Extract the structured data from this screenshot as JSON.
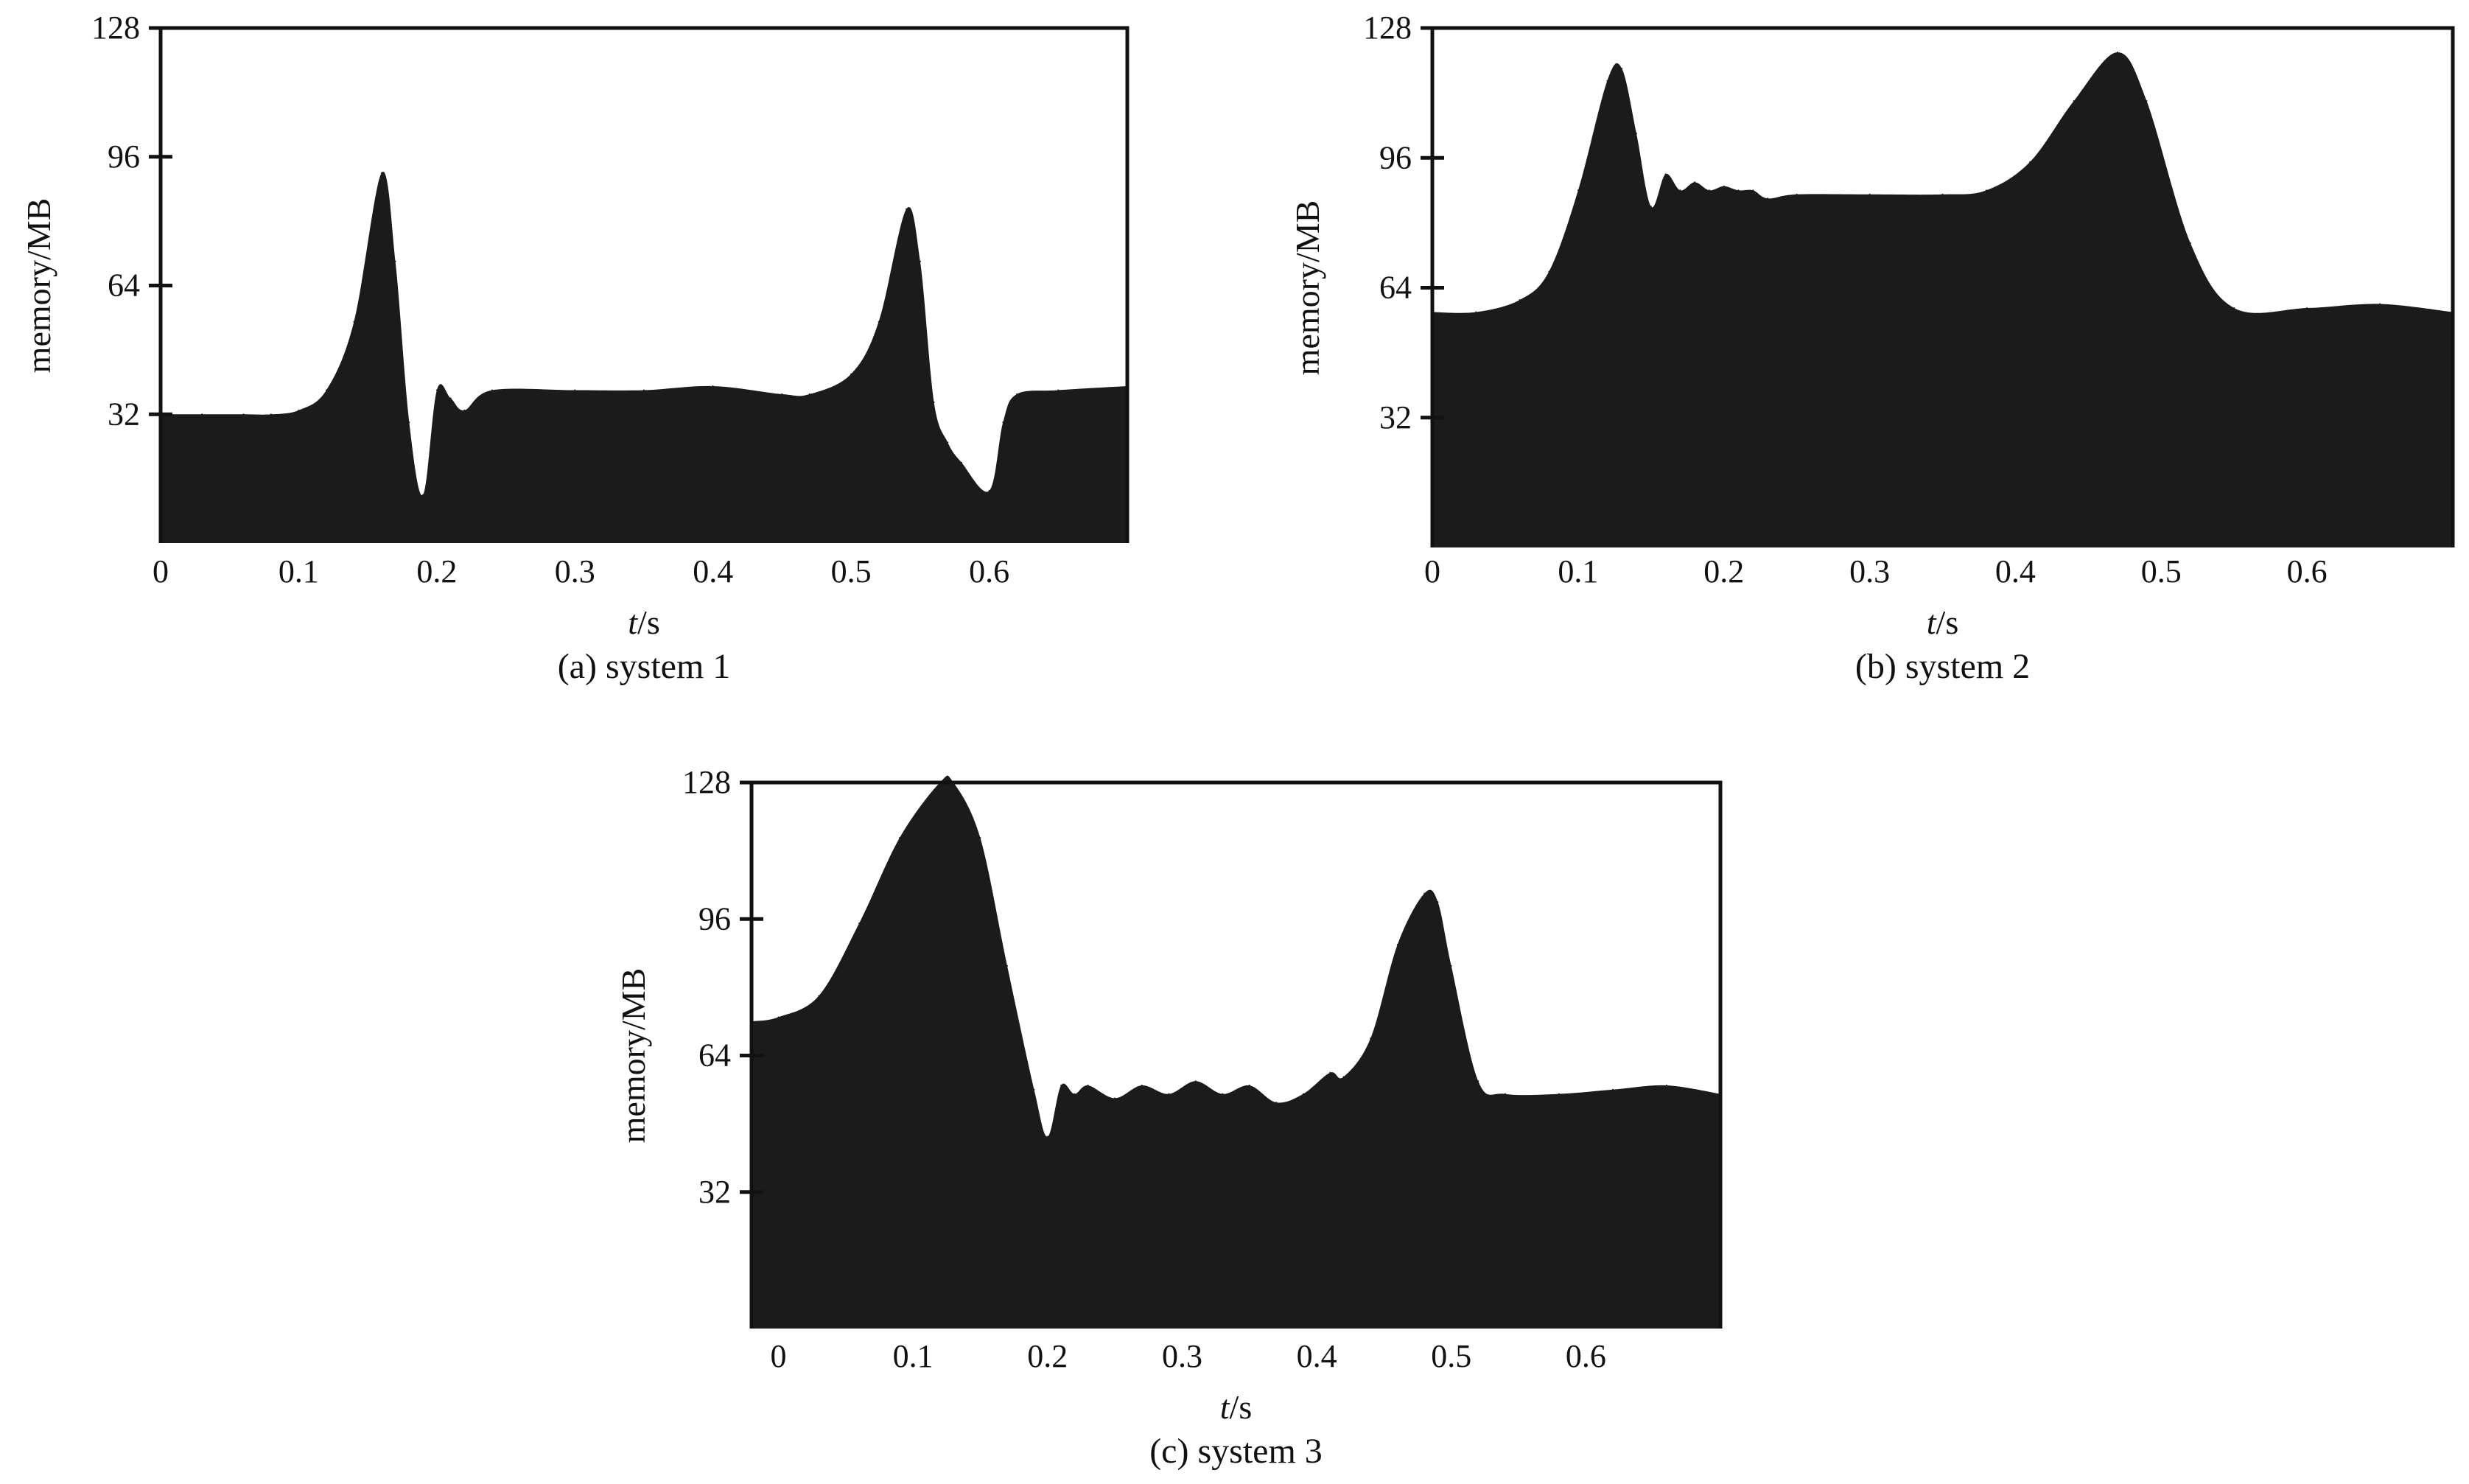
{
  "figure": {
    "fill_color": "#1b1b1b",
    "frame_color": "#111111",
    "background": "#ffffff"
  },
  "chart_data": [
    {
      "type": "area",
      "caption": "(a) system 1",
      "xlabel_var": "t",
      "xlabel_unit": "/s",
      "ylabel": "memory/MB",
      "xlim": [
        0,
        0.7
      ],
      "ylim": [
        0,
        128
      ],
      "xticks": [
        0,
        0.1,
        0.2,
        0.3,
        0.4,
        0.5,
        0.6
      ],
      "xtick_labels": [
        "0",
        "0.1",
        "0.2",
        "0.3",
        "0.4",
        "0.5",
        "0.6"
      ],
      "yticks": [
        32,
        64,
        96,
        128
      ],
      "ytick_labels": [
        "32",
        "64",
        "96",
        "128"
      ],
      "series": [
        {
          "x": [
            0,
            0.03,
            0.06,
            0.08,
            0.1,
            0.12,
            0.14,
            0.16,
            0.17,
            0.18,
            0.19,
            0.2,
            0.21,
            0.22,
            0.24,
            0.3,
            0.35,
            0.4,
            0.45,
            0.47,
            0.5,
            0.52,
            0.54,
            0.55,
            0.56,
            0.57,
            0.58,
            0.6,
            0.61,
            0.62,
            0.65,
            0.7
          ],
          "y": [
            32,
            32,
            32,
            32,
            33,
            38,
            55,
            92,
            70,
            30,
            12,
            38,
            36,
            33,
            38,
            38,
            38,
            39,
            37,
            37,
            42,
            55,
            83,
            70,
            35,
            25,
            20,
            13,
            30,
            37,
            38,
            39
          ]
        }
      ]
    },
    {
      "type": "area",
      "caption": "(b) system 2",
      "xlabel_var": "t",
      "xlabel_unit": "/s",
      "ylabel": "memory/MB",
      "xlim": [
        0,
        0.7
      ],
      "ylim": [
        0,
        128
      ],
      "xticks": [
        0,
        0.1,
        0.2,
        0.3,
        0.4,
        0.5,
        0.6
      ],
      "xtick_labels": [
        "0",
        "0.1",
        "0.2",
        "0.3",
        "0.4",
        "0.5",
        "0.6"
      ],
      "yticks": [
        32,
        64,
        96,
        128
      ],
      "ytick_labels": [
        "32",
        "64",
        "96",
        "128"
      ],
      "series": [
        {
          "x": [
            0,
            0.03,
            0.06,
            0.08,
            0.1,
            0.12,
            0.13,
            0.14,
            0.15,
            0.16,
            0.17,
            0.18,
            0.19,
            0.2,
            0.21,
            0.22,
            0.23,
            0.25,
            0.3,
            0.35,
            0.38,
            0.41,
            0.44,
            0.47,
            0.49,
            0.52,
            0.55,
            0.6,
            0.65,
            0.7
          ],
          "y": [
            58,
            58,
            61,
            68,
            88,
            115,
            118,
            102,
            84,
            92,
            88,
            90,
            88,
            89,
            88,
            88,
            86,
            87,
            87,
            87,
            88,
            95,
            110,
            122,
            110,
            75,
            59,
            59,
            60,
            58
          ]
        }
      ]
    },
    {
      "type": "area",
      "caption": "(c) system 3",
      "xlabel_var": "t",
      "xlabel_unit": "/s",
      "ylabel": "memory/MB",
      "xlim": [
        -0.02,
        0.7
      ],
      "ylim": [
        0,
        128
      ],
      "xticks": [
        0,
        0.1,
        0.2,
        0.3,
        0.4,
        0.5,
        0.6
      ],
      "xtick_labels": [
        "0",
        "0.1",
        "0.2",
        "0.3",
        "0.4",
        "0.5",
        "0.6"
      ],
      "yticks": [
        32,
        64,
        96,
        128
      ],
      "ytick_labels": [
        "32",
        "64",
        "96",
        "128"
      ],
      "series": [
        {
          "x": [
            -0.02,
            0.0,
            0.03,
            0.06,
            0.09,
            0.12,
            0.13,
            0.15,
            0.17,
            0.19,
            0.2,
            0.21,
            0.22,
            0.23,
            0.25,
            0.27,
            0.29,
            0.31,
            0.33,
            0.35,
            0.37,
            0.39,
            0.41,
            0.42,
            0.44,
            0.46,
            0.48,
            0.49,
            0.5,
            0.52,
            0.54,
            0.58,
            0.62,
            0.66,
            0.7
          ],
          "y": [
            72,
            73,
            78,
            95,
            115,
            128,
            128,
            115,
            85,
            56,
            45,
            57,
            55,
            57,
            54,
            57,
            55,
            58,
            55,
            57,
            53,
            55,
            60,
            59,
            68,
            90,
            102,
            100,
            85,
            58,
            55,
            55,
            56,
            57,
            55
          ]
        }
      ]
    }
  ]
}
